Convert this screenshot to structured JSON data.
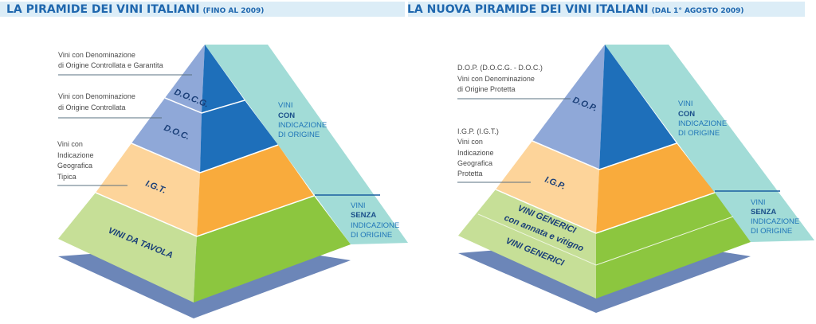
{
  "colors": {
    "header_band": "#dcedf7",
    "title": "#1f67ae",
    "teal": "#a2dcd7",
    "top_left": "#8fa8d8",
    "top_right": "#1e6fba",
    "mid_left": "#fdd49a",
    "mid_right": "#f9ab3c",
    "base_left": "#c6df97",
    "base_right": "#8cc63f",
    "shadow": "#6c86b8",
    "label": "#1a3f78"
  },
  "left": {
    "title": "LA PIRAMIDE DEI VINI ITALIANI",
    "subtitle": "(FINO AL 2009)",
    "levels": [
      "D.O.C.G.",
      "D.O.C.",
      "I.G.T.",
      "VINI DA TAVOLA"
    ],
    "notes": {
      "docg": [
        "Vini con Denominazione",
        "di Origine Controllata e Garantita"
      ],
      "doc": [
        "Vini con Denominazione",
        "di Origine Controllata"
      ],
      "igt": [
        "Vini con",
        "Indicazione",
        "Geografica",
        "Tipica"
      ]
    },
    "side_con": [
      "VINI",
      "CON",
      "INDICAZIONE",
      "DI ORIGINE"
    ],
    "side_senza": [
      "VINI",
      "SENZA",
      "INDICAZIONE",
      "DI ORIGINE"
    ]
  },
  "right": {
    "title": "LA NUOVA PIRAMIDE DEI VINI ITALIANI",
    "subtitle": "(DAL 1° AGOSTO 2009)",
    "levels": [
      "D.O.P.",
      "I.G.P.",
      "VINI GENERICI",
      "con annata e vitigno",
      "VINI GENERICI"
    ],
    "notes": {
      "dop": [
        "D.O.P. (D.O.C.G. - D.O.C.)",
        "Vini con Denominazione",
        "di Origine Protetta"
      ],
      "igp": [
        "I.G.P. (I.G.T.)",
        "Vini con",
        "Indicazione",
        "Geografica",
        "Protetta"
      ]
    },
    "side_con": [
      "VINI",
      "CON",
      "INDICAZIONE",
      "DI ORIGINE"
    ],
    "side_senza": [
      "VINI",
      "SENZA",
      "INDICAZIONE",
      "DI ORIGINE"
    ]
  }
}
